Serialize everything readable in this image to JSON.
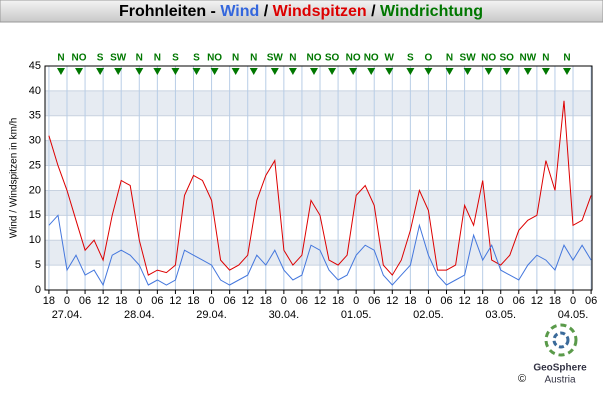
{
  "chart_data": {
    "type": "line",
    "title": [
      {
        "text": "Frohnleiten",
        "color": "#000000"
      },
      {
        "text": " - ",
        "color": "#000000"
      },
      {
        "text": "Wind",
        "color": "#3366dd"
      },
      {
        "text": " / ",
        "color": "#000000"
      },
      {
        "text": "Windspitzen",
        "color": "#dd0000"
      },
      {
        "text": " / ",
        "color": "#000000"
      },
      {
        "text": "Windrichtung",
        "color": "#007700"
      }
    ],
    "y_label": "Wind / Windspitzen in km/h",
    "x": [
      0,
      3,
      6,
      9,
      12,
      15,
      18,
      21,
      24,
      27,
      30,
      33,
      36,
      39,
      42,
      45,
      48,
      51,
      54,
      57,
      60,
      63,
      66,
      69,
      72,
      75,
      78,
      81,
      84,
      87,
      90,
      93,
      96,
      99,
      102,
      105,
      108,
      111,
      114,
      117,
      120,
      123,
      126,
      129,
      132,
      135,
      138,
      141,
      144,
      147,
      150,
      153,
      156,
      159,
      162,
      165,
      168,
      171,
      174,
      177,
      180
    ],
    "series": [
      {
        "name": "Windspitzen",
        "color": "#dd0000",
        "values": [
          31,
          25,
          20,
          14,
          8,
          10,
          6,
          15,
          22,
          21,
          10,
          3,
          4,
          3.5,
          5,
          19,
          23,
          22,
          18,
          6,
          4,
          5,
          7,
          18,
          23,
          26,
          8,
          5,
          7,
          18,
          15,
          6,
          5,
          7,
          19,
          21,
          17,
          5,
          3,
          6,
          12,
          20,
          16,
          4,
          4,
          5,
          17,
          13,
          22,
          6,
          5,
          7,
          12,
          14,
          15,
          26,
          20,
          38,
          13,
          14,
          19
        ]
      },
      {
        "name": "Wind",
        "color": "#4477dd",
        "values": [
          13,
          15,
          4,
          7,
          3,
          4,
          1,
          7,
          8,
          7,
          5,
          1,
          2,
          1,
          2,
          8,
          7,
          6,
          5,
          2,
          1,
          2,
          3,
          7,
          5,
          8,
          4,
          2,
          3,
          9,
          8,
          4,
          2,
          3,
          7,
          9,
          8,
          3,
          1,
          3,
          5,
          13,
          7,
          3,
          1,
          2,
          3,
          11,
          6,
          9,
          4,
          3,
          2,
          5,
          7,
          6,
          4,
          9,
          6,
          9,
          6
        ]
      }
    ],
    "xlim": [
      -1.3,
      180.3
    ],
    "ylim": [
      0,
      45
    ],
    "yticks": [
      0,
      5,
      10,
      15,
      20,
      25,
      30,
      35,
      40,
      45
    ],
    "xticks": [
      {
        "value": 0,
        "label": "18"
      },
      {
        "value": 6,
        "label": "0"
      },
      {
        "value": 12,
        "label": "06"
      },
      {
        "value": 18,
        "label": "12"
      },
      {
        "value": 24,
        "label": "18"
      },
      {
        "value": 30,
        "label": "0"
      },
      {
        "value": 36,
        "label": "06"
      },
      {
        "value": 42,
        "label": "12"
      },
      {
        "value": 48,
        "label": "18"
      },
      {
        "value": 54,
        "label": "0"
      },
      {
        "value": 60,
        "label": "06"
      },
      {
        "value": 66,
        "label": "12"
      },
      {
        "value": 72,
        "label": "18"
      },
      {
        "value": 78,
        "label": "0"
      },
      {
        "value": 84,
        "label": "06"
      },
      {
        "value": 90,
        "label": "12"
      },
      {
        "value": 96,
        "label": "18"
      },
      {
        "value": 102,
        "label": "0"
      },
      {
        "value": 108,
        "label": "06"
      },
      {
        "value": 114,
        "label": "12"
      },
      {
        "value": 120,
        "label": "18"
      },
      {
        "value": 126,
        "label": "0"
      },
      {
        "value": 132,
        "label": "06"
      },
      {
        "value": 138,
        "label": "12"
      },
      {
        "value": 144,
        "label": "18"
      },
      {
        "value": 150,
        "label": "0"
      },
      {
        "value": 156,
        "label": "06"
      },
      {
        "value": 162,
        "label": "12"
      },
      {
        "value": 168,
        "label": "18"
      },
      {
        "value": 174,
        "label": "0"
      },
      {
        "value": 180,
        "label": "06"
      }
    ],
    "date_labels": [
      {
        "value": 6,
        "label": "27.04."
      },
      {
        "value": 30,
        "label": "28.04."
      },
      {
        "value": 54,
        "label": "29.04."
      },
      {
        "value": 78,
        "label": "30.04."
      },
      {
        "value": 102,
        "label": "01.05."
      },
      {
        "value": 126,
        "label": "02.05."
      },
      {
        "value": 150,
        "label": "03.05."
      },
      {
        "value": 174,
        "label": "04.05."
      }
    ],
    "wind_direction": {
      "x": [
        4,
        10,
        17,
        23,
        30,
        36,
        42,
        49,
        55,
        62,
        68,
        75,
        81,
        88,
        94,
        101,
        107,
        113,
        120,
        126,
        133,
        139,
        146,
        152,
        159,
        165,
        172
      ],
      "labels": [
        "N",
        "NO",
        "S",
        "SW",
        "N",
        "N",
        "S",
        "S",
        "NO",
        "N",
        "N",
        "SW",
        "N",
        "NO",
        "SO",
        "NO",
        "NO",
        "W",
        "S",
        "O",
        "N",
        "SW",
        "NO",
        "SO",
        "NW",
        "N",
        "N"
      ],
      "color": "#007700"
    },
    "grid": true,
    "logo": {
      "name": "GeoSphere",
      "sub": "Austria",
      "copyright": "©"
    }
  }
}
